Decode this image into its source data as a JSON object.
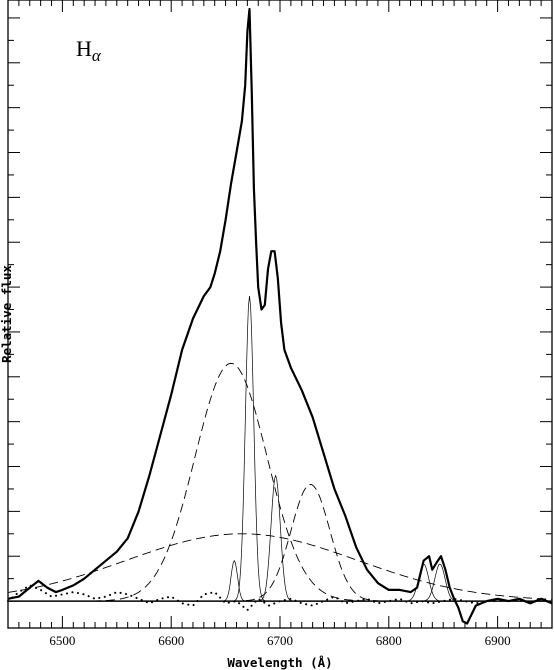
{
  "chart_data": {
    "type": "line",
    "annotation": {
      "text": "H",
      "subscript": "α"
    },
    "xlabel": "Wavelength (Å)",
    "ylabel": "Relative flux",
    "xlim": [
      6450,
      6950
    ],
    "ylim": [
      -0.06,
      1.34
    ],
    "x_ticks": [
      6500,
      6600,
      6700,
      6800,
      6900
    ],
    "y_ticks_unlabeled": true,
    "grid": false,
    "legend": "none",
    "series": [
      {
        "role": "observed",
        "style": "thick-solid",
        "x": [
          6450,
          6460,
          6470,
          6478,
          6486,
          6494,
          6500,
          6510,
          6520,
          6530,
          6540,
          6550,
          6560,
          6570,
          6580,
          6590,
          6600,
          6610,
          6620,
          6630,
          6636,
          6640,
          6645,
          6650,
          6655,
          6660,
          6665,
          6668,
          6670,
          6672,
          6674,
          6676,
          6678,
          6680,
          6683,
          6686,
          6689,
          6692,
          6695,
          6698,
          6701,
          6704,
          6710,
          6720,
          6730,
          6740,
          6750,
          6760,
          6770,
          6780,
          6790,
          6800,
          6810,
          6820,
          6826,
          6832,
          6837,
          6840,
          6845,
          6848,
          6852,
          6856,
          6860,
          6864,
          6868,
          6872,
          6876,
          6880,
          6890,
          6900,
          6910,
          6920,
          6930,
          6940,
          6950
        ],
        "y": [
          0.005,
          0.01,
          0.03,
          0.045,
          0.03,
          0.02,
          0.025,
          0.035,
          0.05,
          0.07,
          0.09,
          0.11,
          0.14,
          0.2,
          0.28,
          0.37,
          0.46,
          0.56,
          0.63,
          0.68,
          0.7,
          0.73,
          0.78,
          0.85,
          0.93,
          1.0,
          1.07,
          1.15,
          1.27,
          1.32,
          1.14,
          0.92,
          0.8,
          0.7,
          0.65,
          0.66,
          0.74,
          0.78,
          0.78,
          0.72,
          0.62,
          0.56,
          0.52,
          0.47,
          0.41,
          0.33,
          0.25,
          0.19,
          0.12,
          0.07,
          0.04,
          0.025,
          0.025,
          0.02,
          0.03,
          0.09,
          0.1,
          0.07,
          0.09,
          0.1,
          0.07,
          0.03,
          0.005,
          -0.015,
          -0.045,
          -0.05,
          -0.03,
          -0.01,
          0.0,
          0.005,
          0.0,
          0.005,
          -0.005,
          0.005,
          -0.005
        ]
      },
      {
        "role": "broad gaussian components",
        "style": "dashed",
        "components": [
          {
            "center": 6655,
            "peak": 0.53,
            "fwhm": 78
          },
          {
            "center": 6728,
            "peak": 0.26,
            "fwhm": 42
          },
          {
            "center": 6665,
            "peak": 0.15,
            "fwhm": 250
          }
        ]
      },
      {
        "role": "narrow gaussian components",
        "style": "thin-solid",
        "components": [
          {
            "center": 6672,
            "peak": 0.68,
            "fwhm": 9
          },
          {
            "center": 6696,
            "peak": 0.28,
            "fwhm": 10
          },
          {
            "center": 6658,
            "peak": 0.09,
            "fwhm": 7
          },
          {
            "center": 6832,
            "peak": 0.083,
            "fwhm": 11
          },
          {
            "center": 6847,
            "peak": 0.083,
            "fwhm": 11
          }
        ]
      },
      {
        "role": "residual",
        "style": "dotted",
        "x": [
          6450,
          6460,
          6470,
          6480,
          6490,
          6500,
          6510,
          6520,
          6530,
          6540,
          6550,
          6560,
          6570,
          6580,
          6590,
          6600,
          6610,
          6620,
          6630,
          6640,
          6650,
          6660,
          6670,
          6680,
          6690,
          6700,
          6710,
          6720,
          6730,
          6740,
          6750,
          6760,
          6770,
          6780,
          6790,
          6800,
          6810,
          6820,
          6830,
          6840,
          6850,
          6860,
          6870,
          6880,
          6890,
          6900
        ],
        "y": [
          0.0,
          0.02,
          0.035,
          0.025,
          0.01,
          0.015,
          0.02,
          0.015,
          0.005,
          0.01,
          0.02,
          0.015,
          0.005,
          -0.005,
          0.005,
          0.01,
          -0.005,
          -0.01,
          0.015,
          0.02,
          -0.005,
          0.0,
          -0.02,
          0.005,
          -0.01,
          0.0,
          0.005,
          -0.005,
          -0.01,
          0.0,
          0.01,
          -0.005,
          0.0,
          0.005,
          -0.005,
          0.0,
          0.005,
          -0.005,
          0.0,
          -0.005,
          0.0,
          0.005,
          0.0,
          -0.005,
          0.0,
          0.0
        ]
      }
    ]
  }
}
